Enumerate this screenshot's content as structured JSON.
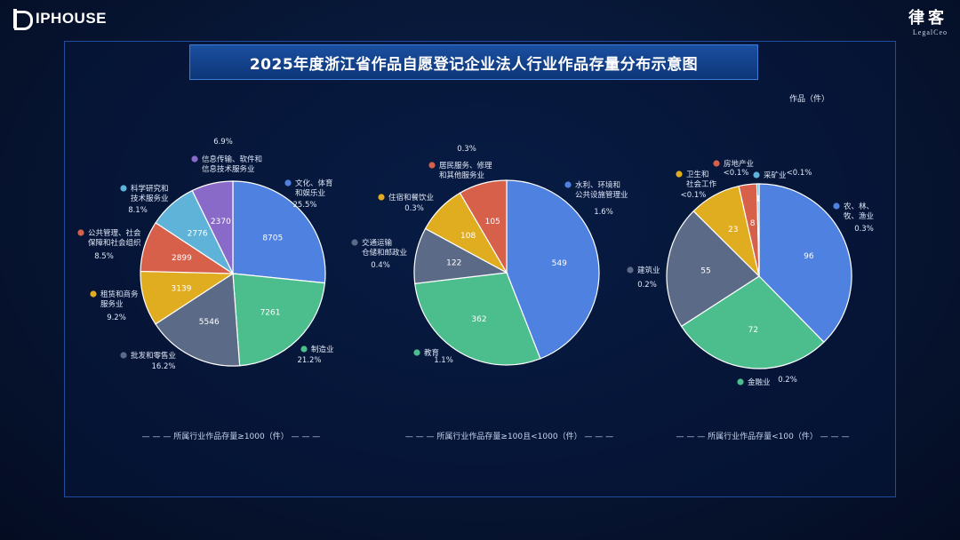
{
  "brand": {
    "left_logo_text": "IPHOUSE",
    "right_logo_cn": "律客",
    "right_logo_en": "LegalCeo"
  },
  "title": "2025年度浙江省作品自愿登记企业法人行业作品存量分布示意图",
  "unit_label": "作品（件）",
  "colors": [
    "#4f81e0",
    "#4cbe8e",
    "#5b6a86",
    "#e0ad21",
    "#d6604a",
    "#5fb3d9",
    "#8a6ac9",
    "#2c8cc4"
  ],
  "chart_data": [
    {
      "type": "pie",
      "caption": "所属行业作品存量≥1000（件）",
      "slices": [
        {
          "label": "文化、体育和娱乐业",
          "value": 8705,
          "percent": "25.5%",
          "color": "#4f81e0"
        },
        {
          "label": "制造业",
          "value": 7261,
          "percent": "21.2%",
          "color": "#4cbe8e"
        },
        {
          "label": "批发和零售业",
          "value": 5546,
          "percent": "16.2%",
          "color": "#5b6a86"
        },
        {
          "label": "租赁和商务服务业",
          "value": 3139,
          "percent": "9.2%",
          "color": "#e0ad21"
        },
        {
          "label": "公共管理、社会保障和社会组织",
          "value": 2899,
          "percent": "8.5%",
          "color": "#d6604a"
        },
        {
          "label": "科学研究和技术服务业",
          "value": 2776,
          "percent": "8.1%",
          "color": "#5fb3d9"
        },
        {
          "label": "信息传输、软件和信息技术服务业",
          "value": 2370,
          "percent": "6.9%",
          "color": "#8a6ac9"
        }
      ]
    },
    {
      "type": "pie",
      "caption": "所属行业作品存量≥100且<1000（件）",
      "slices": [
        {
          "label": "水利、环境和公共设施管理业",
          "value": 549,
          "percent": "1.6%",
          "color": "#4f81e0"
        },
        {
          "label": "教育",
          "value": 362,
          "percent": "1.1%",
          "color": "#4cbe8e"
        },
        {
          "label": "交通运输仓储和邮政业",
          "value": 122,
          "percent": "0.4%",
          "color": "#5b6a86"
        },
        {
          "label": "住宿和餐饮业",
          "value": 108,
          "percent": "0.3%",
          "color": "#e0ad21"
        },
        {
          "label": "居民服务、修理和其他服务业",
          "value": 105,
          "percent": "0.3%",
          "color": "#d6604a"
        }
      ]
    },
    {
      "type": "pie",
      "caption": "所属行业作品存量<100（件）",
      "slices": [
        {
          "label": "农、林、牧、渔业",
          "value": 96,
          "percent": "0.3%",
          "color": "#4f81e0"
        },
        {
          "label": "金融业",
          "value": 72,
          "percent": "0.2%",
          "color": "#4cbe8e"
        },
        {
          "label": "建筑业",
          "value": 55,
          "percent": "0.2%",
          "color": "#5b6a86"
        },
        {
          "label": "卫生和社会工作",
          "value": 23,
          "percent": "<0.1%",
          "color": "#e0ad21"
        },
        {
          "label": "房地产业",
          "value": 8,
          "percent": "<0.1%",
          "color": "#d6604a"
        },
        {
          "label": "采矿业",
          "value": 1,
          "percent": "<0.1%",
          "color": "#5fb3d9"
        }
      ]
    }
  ]
}
